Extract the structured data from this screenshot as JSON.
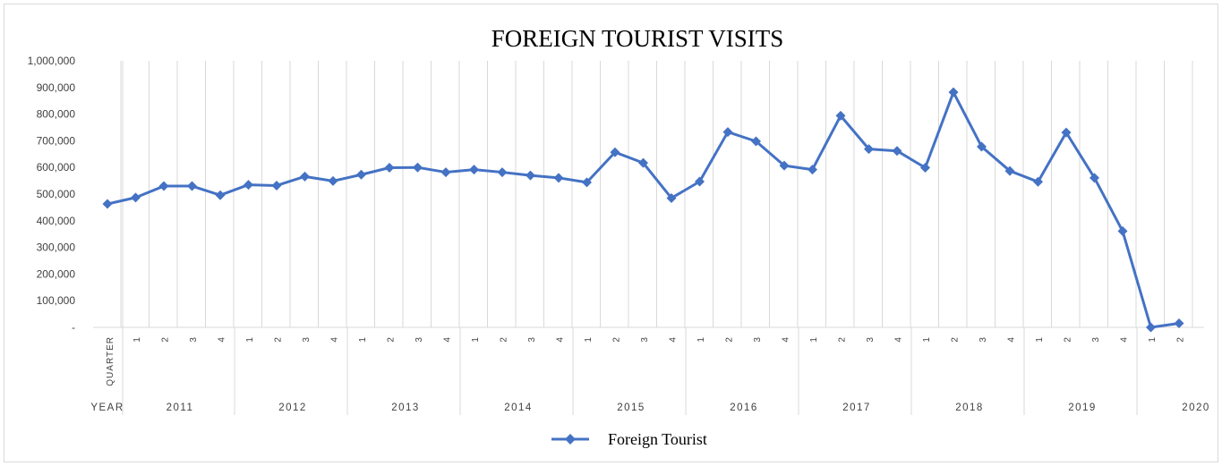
{
  "chart_data": {
    "type": "line",
    "title": "FOREIGN TOURIST VISITS",
    "x_header_quarter": "QUARTER",
    "x_header_year": "YEAR",
    "y_ticks": [
      "-",
      "100,000",
      "200,000",
      "300,000",
      "400,000",
      "500,000",
      "600,000",
      "700,000",
      "800,000",
      "900,000",
      "1,000,000"
    ],
    "ylim": [
      0,
      1000000
    ],
    "grid": "vertical",
    "legend_position": "bottom",
    "years": [
      {
        "label": "2011",
        "quarters": [
          "1",
          "2",
          "3",
          "4"
        ]
      },
      {
        "label": "2012",
        "quarters": [
          "1",
          "2",
          "3",
          "4"
        ]
      },
      {
        "label": "2013",
        "quarters": [
          "1",
          "2",
          "3",
          "4"
        ]
      },
      {
        "label": "2014",
        "quarters": [
          "1",
          "2",
          "3",
          "4"
        ]
      },
      {
        "label": "2015",
        "quarters": [
          "1",
          "2",
          "3",
          "4"
        ]
      },
      {
        "label": "2016",
        "quarters": [
          "1",
          "2",
          "3",
          "4"
        ]
      },
      {
        "label": "2017",
        "quarters": [
          "1",
          "2",
          "3",
          "4"
        ]
      },
      {
        "label": "2018",
        "quarters": [
          "1",
          "2",
          "3",
          "4"
        ]
      },
      {
        "label": "2019",
        "quarters": [
          "1",
          "2",
          "3",
          "4"
        ]
      },
      {
        "label": "2020",
        "quarters": [
          "1",
          "2"
        ]
      }
    ],
    "series": [
      {
        "name": "Foreign Tourist",
        "color": "#4472c4",
        "marker": "diamond",
        "values": [
          463000,
          487000,
          530000,
          530000,
          496000,
          535000,
          532000,
          566000,
          549000,
          573000,
          599000,
          600000,
          582000,
          592000,
          582000,
          570000,
          561000,
          544000,
          657000,
          617000,
          485000,
          547000,
          733000,
          698000,
          607000,
          592000,
          794000,
          669000,
          662000,
          599000,
          882000,
          678000,
          587000,
          546000,
          731000,
          561000,
          361000,
          0,
          15000
        ]
      }
    ]
  }
}
